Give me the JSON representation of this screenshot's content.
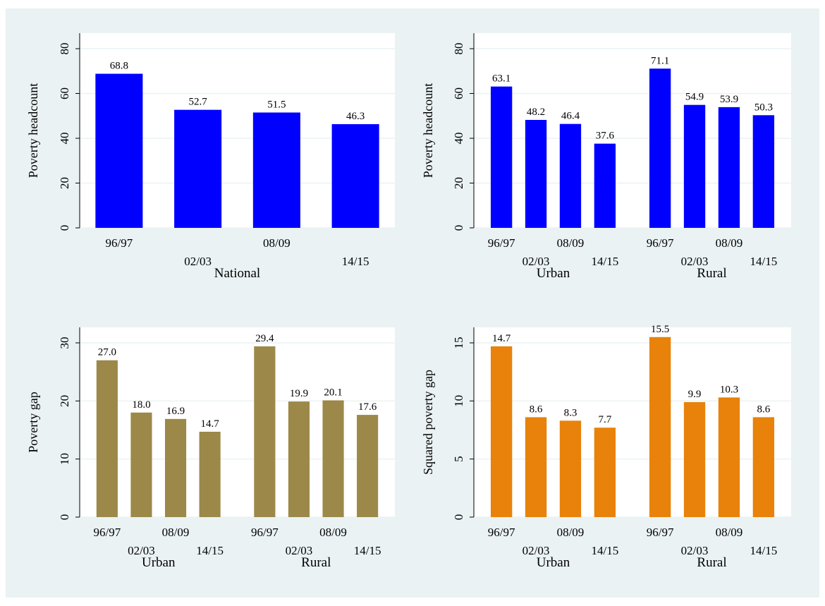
{
  "chart_data": [
    {
      "type": "bar",
      "ylabel": "Poverty headcount",
      "ylim": [
        0,
        80
      ],
      "yticks": [
        0,
        20,
        40,
        60,
        80
      ],
      "grid": true,
      "color": "#0000ff",
      "groups": [
        {
          "name": "National",
          "categories": [
            "96/97",
            "02/03",
            "08/09",
            "14/15"
          ],
          "values": [
            68.8,
            52.7,
            51.5,
            46.3
          ],
          "labels": [
            "68.8",
            "52.7",
            "51.5",
            "46.3"
          ]
        }
      ]
    },
    {
      "type": "bar",
      "ylabel": "Poverty headcount",
      "ylim": [
        0,
        80
      ],
      "yticks": [
        0,
        20,
        40,
        60,
        80
      ],
      "grid": true,
      "color": "#0000ff",
      "groups": [
        {
          "name": "Urban",
          "categories": [
            "96/97",
            "02/03",
            "08/09",
            "14/15"
          ],
          "values": [
            63.1,
            48.2,
            46.4,
            37.6
          ],
          "labels": [
            "63.1",
            "48.2",
            "46.4",
            "37.6"
          ]
        },
        {
          "name": "Rural",
          "categories": [
            "96/97",
            "02/03",
            "08/09",
            "14/15"
          ],
          "values": [
            71.1,
            54.9,
            53.9,
            50.3
          ],
          "labels": [
            "71.1",
            "54.9",
            "53.9",
            "50.3"
          ]
        }
      ]
    },
    {
      "type": "bar",
      "ylabel": "Poverty gap",
      "ylim": [
        0,
        30
      ],
      "yticks": [
        0,
        10,
        20,
        30
      ],
      "grid": true,
      "color": "#9c8848",
      "groups": [
        {
          "name": "Urban",
          "categories": [
            "96/97",
            "02/03",
            "08/09",
            "14/15"
          ],
          "values": [
            27.0,
            18.0,
            16.9,
            14.7
          ],
          "labels": [
            "27.0",
            "18.0",
            "16.9",
            "14.7"
          ]
        },
        {
          "name": "Rural",
          "categories": [
            "96/97",
            "02/03",
            "08/09",
            "14/15"
          ],
          "values": [
            29.4,
            19.9,
            20.1,
            17.6
          ],
          "labels": [
            "29.4",
            "19.9",
            "20.1",
            "17.6"
          ]
        }
      ]
    },
    {
      "type": "bar",
      "ylabel": "Squared poverty gap",
      "ylim": [
        0,
        15
      ],
      "yticks": [
        0,
        5,
        10,
        15
      ],
      "grid": true,
      "color": "#e8820a",
      "groups": [
        {
          "name": "Urban",
          "categories": [
            "96/97",
            "02/03",
            "08/09",
            "14/15"
          ],
          "values": [
            14.7,
            8.6,
            8.3,
            7.7
          ],
          "labels": [
            "14.7",
            "8.6",
            "8.3",
            "7.7"
          ]
        },
        {
          "name": "Rural",
          "categories": [
            "96/97",
            "02/03",
            "08/09",
            "14/15"
          ],
          "values": [
            15.5,
            9.9,
            10.3,
            8.6
          ],
          "labels": [
            "15.5",
            "9.9",
            "10.3",
            "8.6"
          ]
        }
      ]
    }
  ]
}
